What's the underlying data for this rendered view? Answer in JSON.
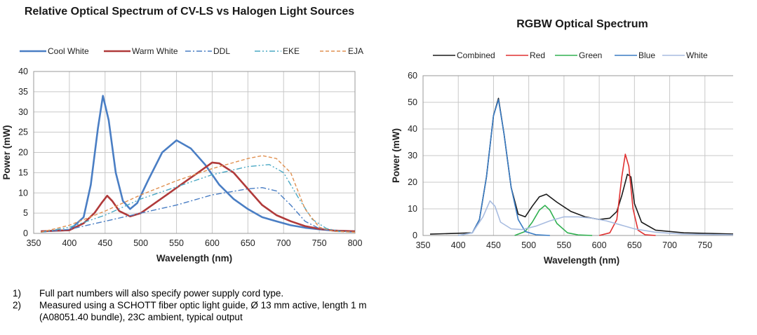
{
  "chart_data": [
    {
      "type": "line",
      "title": "Relative Optical Spectrum of CV-LS vs Halogen Light Sources",
      "xlabel": "Wavelength (nm)",
      "ylabel": "Power (mW)",
      "xlim": [
        350,
        800
      ],
      "ylim": [
        0,
        40
      ],
      "xticks": [
        350,
        400,
        450,
        500,
        550,
        600,
        650,
        700,
        750,
        800
      ],
      "yticks": [
        0,
        5,
        10,
        15,
        20,
        25,
        30,
        35,
        40
      ],
      "grid": true,
      "legend": "top",
      "series": [
        {
          "name": "Cool White",
          "color": "#4a7ec4",
          "style": "solid",
          "x": [
            360,
            400,
            420,
            430,
            440,
            447,
            455,
            465,
            475,
            485,
            495,
            510,
            530,
            550,
            570,
            590,
            610,
            630,
            650,
            670,
            690,
            710,
            730,
            750,
            770,
            800
          ],
          "y": [
            0.5,
            0.8,
            4,
            12,
            26,
            34,
            28,
            15,
            8,
            6,
            7.5,
            13,
            20,
            23,
            21,
            17,
            12,
            8.5,
            6,
            4,
            3,
            2,
            1.4,
            1,
            0.7,
            0.5
          ]
        },
        {
          "name": "Warm White",
          "color": "#b03a3a",
          "style": "solid",
          "x": [
            360,
            400,
            420,
            435,
            445,
            453,
            460,
            470,
            485,
            500,
            520,
            540,
            560,
            580,
            600,
            610,
            630,
            650,
            670,
            690,
            710,
            730,
            750,
            770,
            800
          ],
          "y": [
            0.5,
            0.8,
            2.5,
            5,
            7.5,
            9.3,
            8,
            5.5,
            4.2,
            5,
            7.5,
            10,
            12.5,
            15,
            17.5,
            17.3,
            15,
            11,
            7,
            4.5,
            3,
            1.8,
            1.1,
            0.7,
            0.5
          ]
        },
        {
          "name": "DDL",
          "color": "#4a7ec4",
          "style": "dashdot",
          "x": [
            360,
            400,
            450,
            500,
            550,
            600,
            650,
            670,
            690,
            710,
            730,
            750,
            770,
            800
          ],
          "y": [
            0.3,
            1,
            3,
            5,
            7,
            9.5,
            11,
            11.3,
            10.5,
            7,
            3,
            1.2,
            0.5,
            0.3
          ]
        },
        {
          "name": "EKE",
          "color": "#4aa8c4",
          "style": "dashdotdot",
          "x": [
            360,
            400,
            450,
            500,
            550,
            600,
            650,
            680,
            700,
            720,
            740,
            760,
            780,
            800
          ],
          "y": [
            0.3,
            1.5,
            4.5,
            8.5,
            11.5,
            14.5,
            16.5,
            17,
            15,
            9,
            3.5,
            1.2,
            0.5,
            0.3
          ]
        },
        {
          "name": "EJA",
          "color": "#e09050",
          "style": "dashed",
          "x": [
            360,
            400,
            450,
            500,
            550,
            600,
            650,
            670,
            690,
            710,
            730,
            750,
            770,
            800
          ],
          "y": [
            0.3,
            2,
            5.5,
            9.5,
            13,
            16,
            18.5,
            19.2,
            18.5,
            15,
            6,
            1.5,
            0.5,
            0.3
          ]
        }
      ]
    },
    {
      "type": "line",
      "title": "RGBW Optical Spectrum",
      "xlabel": "Wavelength (nm)",
      "ylabel": "Power (mW)",
      "xlim": [
        350,
        800
      ],
      "ylim": [
        0,
        60
      ],
      "xticks": [
        350,
        400,
        450,
        500,
        550,
        600,
        650,
        700,
        750,
        800
      ],
      "yticks": [
        0,
        10,
        20,
        30,
        40,
        50,
        60
      ],
      "grid": true,
      "legend": "top",
      "series": [
        {
          "name": "Combined",
          "color": "#1a1a1a",
          "x": [
            360,
            420,
            430,
            440,
            450,
            457,
            465,
            475,
            485,
            495,
            505,
            515,
            525,
            540,
            560,
            580,
            600,
            615,
            625,
            632,
            640,
            645,
            650,
            660,
            680,
            720,
            800
          ],
          "y": [
            0.5,
            1,
            6,
            22,
            45,
            51.5,
            38,
            18,
            8,
            7,
            11,
            14.5,
            15.5,
            12.5,
            9,
            7,
            6,
            6.5,
            9,
            15,
            23,
            22,
            12,
            5,
            2,
            1,
            0.5
          ]
        },
        {
          "name": "Red",
          "color": "#e03030",
          "x": [
            600,
            615,
            625,
            632,
            637,
            642,
            648,
            655,
            665,
            680
          ],
          "y": [
            0,
            1,
            6,
            22,
            30.5,
            26,
            10,
            2,
            0.3,
            0
          ]
        },
        {
          "name": "Green",
          "color": "#30b050",
          "x": [
            480,
            495,
            505,
            515,
            523,
            530,
            540,
            555,
            570,
            590
          ],
          "y": [
            0,
            1.5,
            5,
            9.5,
            11.3,
            9.5,
            4.5,
            1,
            0.2,
            0
          ]
        },
        {
          "name": "Blue",
          "color": "#3a7cc4",
          "x": [
            400,
            420,
            430,
            440,
            450,
            457,
            465,
            475,
            485,
            495,
            510,
            530
          ],
          "y": [
            0,
            1,
            6,
            22,
            45,
            51,
            38,
            18,
            6,
            1.5,
            0.3,
            0
          ]
        },
        {
          "name": "White",
          "color": "#a8bce0",
          "x": [
            400,
            420,
            435,
            445,
            452,
            460,
            475,
            490,
            510,
            530,
            550,
            570,
            590,
            610,
            630,
            650,
            680,
            720,
            800
          ],
          "y": [
            0,
            1,
            7,
            13,
            11,
            5,
            2.5,
            2.2,
            3.5,
            5.5,
            7,
            7,
            6.5,
            5.5,
            4,
            2.5,
            1.2,
            0.5,
            0.2
          ]
        }
      ]
    }
  ],
  "notes": [
    {
      "num": "1)",
      "text": "Full part numbers will also specify power supply cord type."
    },
    {
      "num": "2)",
      "text": "Measured using a SCHOTT fiber optic light guide, Ø 13 mm active, length 1 m (A08051.40 bundle), 23C ambient, typical output"
    }
  ]
}
